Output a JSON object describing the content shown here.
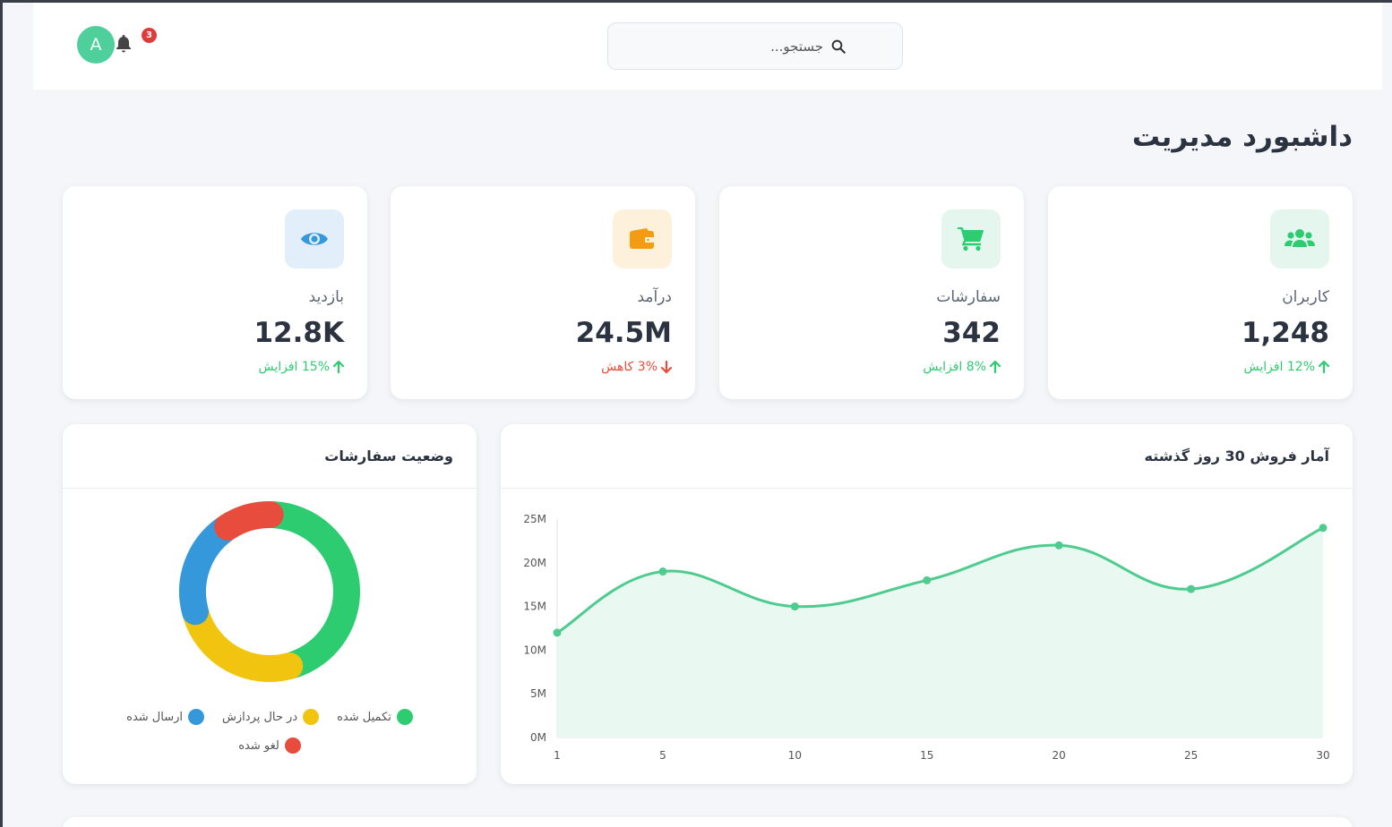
{
  "header": {
    "search_placeholder": "جستجو...",
    "avatar_initial": "A",
    "notification_count": "3"
  },
  "page_title": "داشبورد مدیریت",
  "stats": [
    {
      "label": "کاربران",
      "value": "1,248",
      "change": "12% افزایش",
      "trend": "up",
      "icon": "users-icon",
      "color": "#2ecc71"
    },
    {
      "label": "سفارشات",
      "value": "342",
      "change": "8% افزایش",
      "trend": "up",
      "icon": "cart-icon",
      "color": "#2ecc71"
    },
    {
      "label": "درآمد",
      "value": "24.5M",
      "change": "3% کاهش",
      "trend": "down",
      "icon": "wallet-icon",
      "color": "#f39c12"
    },
    {
      "label": "بازدید",
      "value": "12.8K",
      "change": "15% افزایش",
      "trend": "up",
      "icon": "eye-icon",
      "color": "#3498db"
    }
  ],
  "sales_chart": {
    "title": "آمار فروش 30 روز گذشته",
    "chart_data": {
      "type": "area",
      "x": [
        1,
        5,
        10,
        15,
        20,
        25,
        30
      ],
      "values": [
        12,
        19,
        15,
        18,
        22,
        17,
        24
      ],
      "unit": "M",
      "ylim": [
        0,
        25
      ],
      "yticks": [
        "0M",
        "5M",
        "10M",
        "15M",
        "20M",
        "25M"
      ],
      "xticks": [
        "1",
        "5",
        "10",
        "15",
        "20",
        "25",
        "30"
      ],
      "color": "#4ecb8f"
    }
  },
  "orders_chart": {
    "title": "وضعیت سفارشات",
    "chart_data": {
      "type": "pie",
      "labels": [
        "تکمیل شده",
        "در حال پردازش",
        "ارسال شده",
        "لغو شده"
      ],
      "values": [
        45,
        25,
        20,
        10
      ],
      "colors": [
        "#2ecc71",
        "#f1c40f",
        "#3498db",
        "#e74c3c"
      ]
    }
  }
}
